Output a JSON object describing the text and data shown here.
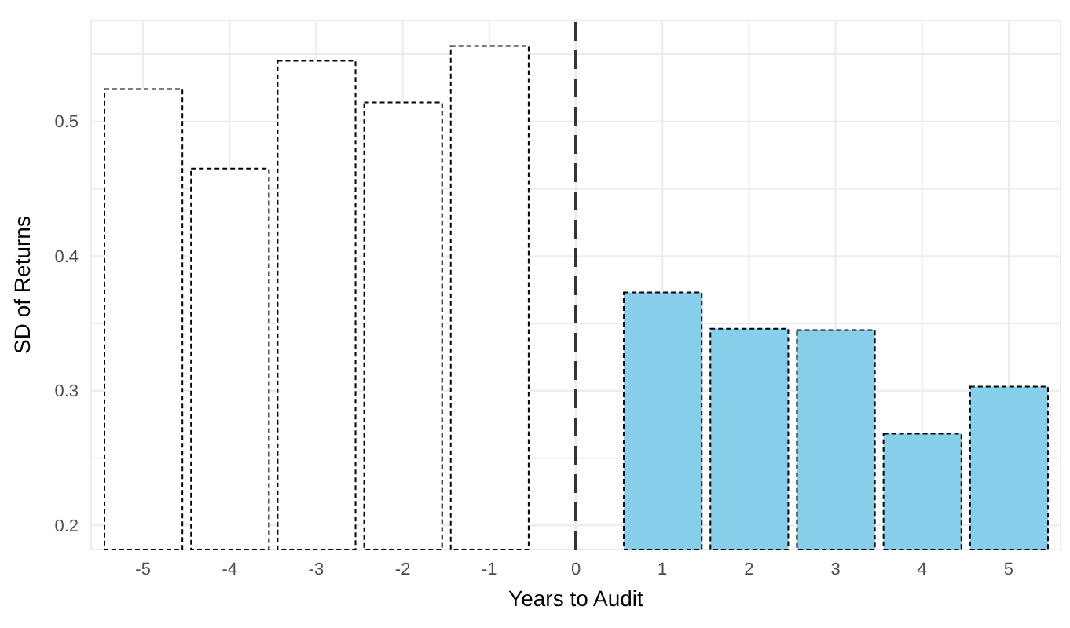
{
  "chart_data": {
    "type": "bar",
    "xlabel": "Years to Audit",
    "ylabel": "SD of Returns",
    "x": [
      -5,
      -4,
      -3,
      -2,
      -1,
      1,
      2,
      3,
      4,
      5
    ],
    "values": [
      0.524,
      0.465,
      0.545,
      0.514,
      0.556,
      0.373,
      0.346,
      0.345,
      0.268,
      0.303
    ],
    "colors": [
      "#ffffff",
      "#ffffff",
      "#ffffff",
      "#ffffff",
      "#ffffff",
      "#87ceeb",
      "#87ceeb",
      "#87ceeb",
      "#87ceeb",
      "#87ceeb"
    ],
    "line_style": "dashed",
    "xlim": [
      -5.6,
      5.6
    ],
    "xticks": [
      -5,
      -4,
      -3,
      -2,
      -1,
      0,
      1,
      2,
      3,
      4,
      5
    ],
    "ylim": [
      0.182,
      0.575
    ],
    "yticks": [
      0.2,
      {
        "value": 0.25,
        "label": null
      },
      0.3,
      {
        "value": 0.35,
        "label": null
      },
      0.4,
      {
        "value": 0.45,
        "label": null
      },
      0.5,
      {
        "value": 0.55,
        "label": null
      }
    ],
    "ref_lines": [
      {
        "axis": "x",
        "value": 0,
        "label": null,
        "color": "#333333",
        "line_style": "dashed"
      }
    ],
    "grid": true
  }
}
